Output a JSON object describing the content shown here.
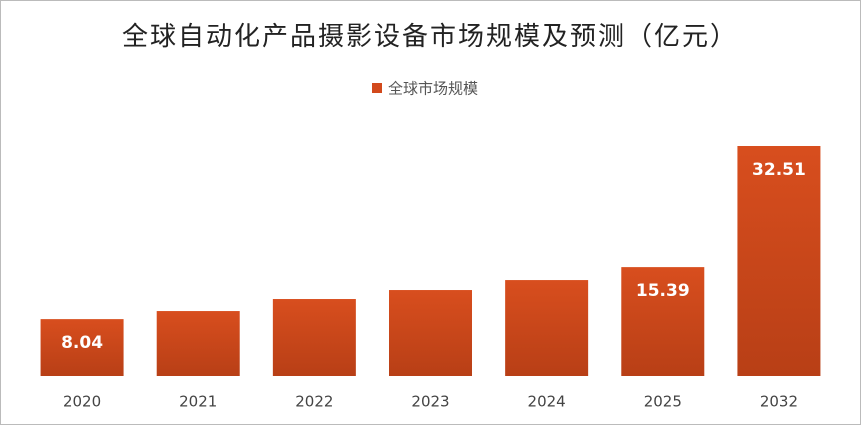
{
  "chart_data": {
    "type": "bar",
    "title": "全球自动化产品摄影设备市场规模及预测（亿元）",
    "categories": [
      "2020",
      "2021",
      "2022",
      "2023",
      "2024",
      "2025",
      "2032"
    ],
    "series": [
      {
        "name": "全球市场规模",
        "color": "#d2491c",
        "values": [
          8.04,
          9.18,
          10.88,
          12.15,
          13.56,
          15.39,
          32.51
        ],
        "value_labels": [
          "8.04",
          null,
          null,
          null,
          null,
          "15.39",
          "32.51"
        ]
      }
    ],
    "legend": "top"
  }
}
